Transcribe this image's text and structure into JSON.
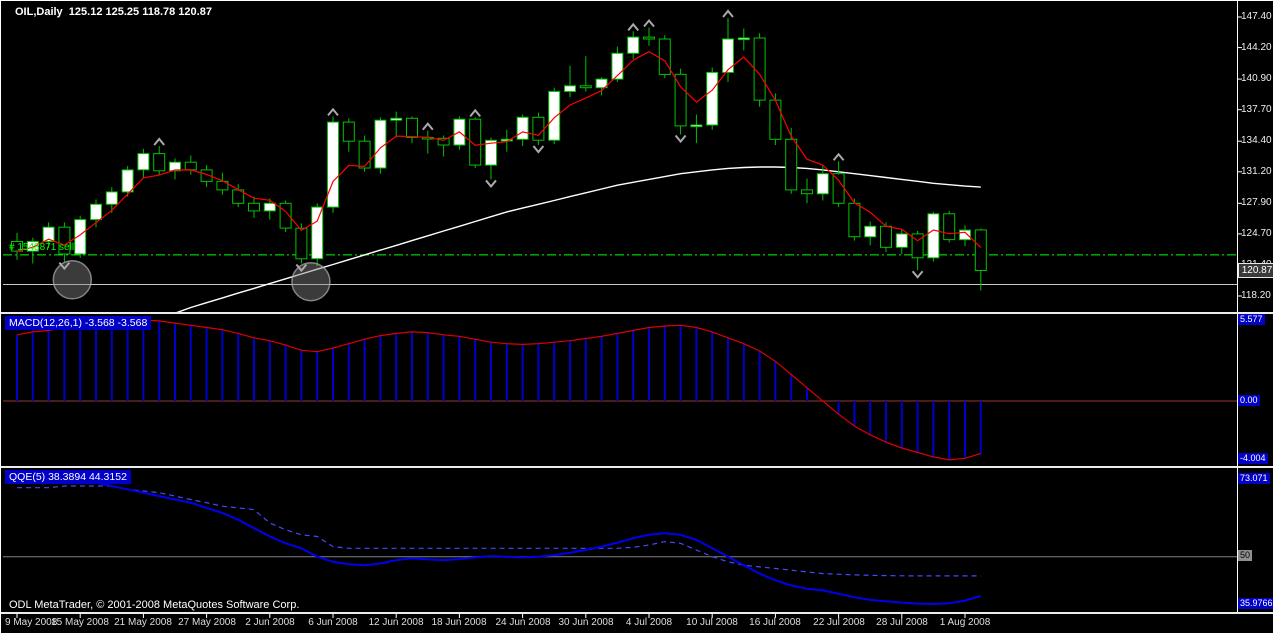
{
  "window": {
    "title": "OIL,Daily  125.12 125.25 118.78 120.87",
    "copyright": "ODL MetaTrader, © 2001-2008 MetaQuotes Software Corp."
  },
  "colors": {
    "background": "#000000",
    "frame": "#FFFFFF",
    "candle_outline": "#00C400",
    "bull_body": "#FFFFFF",
    "bear_body": "#000000",
    "ma_fast": "#FF0000",
    "ma_slow": "#FFFFFF",
    "order_line": "#00FF00",
    "support_line": "#C8C8C8",
    "macd_bar": "#0000CC",
    "macd_signal": "#DD0000",
    "macd_zero": "#993333",
    "qqe_fast": "#0000F0",
    "qqe_slow": "#4747FF",
    "level_50": "#808080",
    "indicator_label_bg": "#0000C8",
    "axis_text": "#F0F0F0",
    "arrow": "#AAAAAA"
  },
  "price_badge": "120.87",
  "chart_data": [
    {
      "type": "candlestick",
      "title": "OIL,Daily",
      "ohlc_last": [
        125.12,
        125.25,
        118.78,
        120.87
      ],
      "current_price": 120.87,
      "ylim": [
        116.5,
        148.9
      ],
      "y_ticks": [
        "147.40",
        "144.20",
        "140.90",
        "137.70",
        "134.40",
        "131.20",
        "127.90",
        "124.70",
        "121.40",
        "118.20"
      ],
      "x_ticks": [
        {
          "bar": 0,
          "label": "9 May 2008"
        },
        {
          "bar": 4,
          "label": "15 May 2008"
        },
        {
          "bar": 8,
          "label": "21 May 2008"
        },
        {
          "bar": 12,
          "label": "27 May 2008"
        },
        {
          "bar": 16,
          "label": "2 Jun 2008"
        },
        {
          "bar": 20,
          "label": "6 Jun 2008"
        },
        {
          "bar": 24,
          "label": "12 Jun 2008"
        },
        {
          "bar": 28,
          "label": "18 Jun 2008"
        },
        {
          "bar": 32,
          "label": "24 Jun 2008"
        },
        {
          "bar": 36,
          "label": "30 Jun 2008"
        },
        {
          "bar": 40,
          "label": "4 Jul 2008"
        },
        {
          "bar": 44,
          "label": "10 Jul 2008"
        },
        {
          "bar": 48,
          "label": "16 Jul 2008"
        },
        {
          "bar": 52,
          "label": "22 Jul 2008"
        },
        {
          "bar": 56,
          "label": "28 Jul 2008"
        },
        {
          "bar": 60,
          "label": "1 Aug 2008"
        }
      ],
      "candles": [
        [
          123.9,
          124.8,
          122.0,
          122.9
        ],
        [
          122.9,
          124.3,
          121.6,
          123.9
        ],
        [
          123.9,
          125.9,
          123.2,
          125.4
        ],
        [
          125.4,
          125.9,
          121.8,
          122.6
        ],
        [
          122.6,
          126.6,
          122.2,
          126.2
        ],
        [
          126.2,
          128.3,
          125.4,
          127.8
        ],
        [
          127.8,
          129.6,
          126.9,
          129.1
        ],
        [
          129.1,
          131.8,
          128.6,
          131.4
        ],
        [
          131.4,
          133.6,
          130.5,
          133.1
        ],
        [
          133.1,
          133.9,
          130.9,
          131.3
        ],
        [
          131.3,
          132.6,
          130.4,
          132.2
        ],
        [
          132.2,
          132.9,
          130.9,
          131.4
        ],
        [
          131.4,
          131.9,
          129.6,
          130.2
        ],
        [
          130.2,
          131.1,
          128.8,
          129.3
        ],
        [
          129.3,
          129.9,
          127.5,
          127.9
        ],
        [
          127.9,
          128.6,
          126.4,
          127.1
        ],
        [
          127.1,
          128.4,
          126.2,
          127.9
        ],
        [
          127.9,
          128.2,
          124.9,
          125.3
        ],
        [
          125.3,
          125.8,
          121.6,
          122.1
        ],
        [
          122.1,
          127.9,
          121.3,
          127.5
        ],
        [
          127.5,
          137.0,
          126.9,
          136.4
        ],
        [
          136.4,
          136.8,
          133.3,
          134.4
        ],
        [
          134.4,
          135.0,
          131.2,
          131.6
        ],
        [
          131.6,
          136.9,
          131.0,
          136.6
        ],
        [
          136.6,
          137.5,
          134.8,
          136.8
        ],
        [
          136.8,
          137.0,
          134.2,
          134.8
        ],
        [
          134.8,
          135.5,
          133.1,
          134.7
        ],
        [
          134.7,
          135.0,
          132.8,
          134.0
        ],
        [
          134.0,
          137.0,
          133.5,
          136.7
        ],
        [
          136.7,
          136.9,
          131.6,
          131.9
        ],
        [
          131.9,
          134.8,
          130.4,
          134.5
        ],
        [
          134.5,
          135.6,
          133.3,
          134.6
        ],
        [
          134.6,
          137.2,
          133.9,
          136.9
        ],
        [
          136.9,
          137.4,
          134.0,
          134.5
        ],
        [
          134.5,
          140.0,
          134.1,
          139.6
        ],
        [
          139.6,
          142.3,
          139.0,
          140.2
        ],
        [
          140.2,
          143.3,
          139.6,
          140.0
        ],
        [
          140.0,
          141.1,
          139.2,
          140.9
        ],
        [
          140.9,
          144.3,
          140.6,
          143.6
        ],
        [
          143.6,
          145.9,
          143.0,
          145.3
        ],
        [
          145.3,
          146.3,
          144.4,
          145.1
        ],
        [
          145.1,
          145.5,
          141.0,
          141.4
        ],
        [
          141.4,
          142.0,
          135.1,
          136.0
        ],
        [
          136.0,
          137.2,
          134.2,
          136.1
        ],
        [
          136.1,
          142.1,
          135.6,
          141.6
        ],
        [
          141.6,
          147.3,
          140.6,
          145.1
        ],
        [
          145.1,
          146.2,
          143.9,
          145.2
        ],
        [
          145.2,
          145.7,
          138.0,
          138.7
        ],
        [
          138.7,
          139.4,
          134.0,
          134.6
        ],
        [
          134.6,
          135.8,
          128.9,
          129.3
        ],
        [
          129.3,
          130.5,
          127.9,
          128.9
        ],
        [
          128.9,
          131.8,
          128.2,
          131.0
        ],
        [
          131.0,
          132.3,
          127.5,
          127.9
        ],
        [
          127.9,
          128.4,
          124.0,
          124.4
        ],
        [
          124.4,
          126.0,
          123.5,
          125.5
        ],
        [
          125.5,
          125.9,
          122.8,
          123.3
        ],
        [
          123.3,
          125.2,
          122.6,
          124.7
        ],
        [
          124.7,
          125.0,
          120.9,
          122.2
        ],
        [
          122.2,
          127.0,
          121.8,
          126.8
        ],
        [
          126.8,
          127.1,
          123.8,
          124.1
        ],
        [
          124.1,
          125.6,
          123.4,
          125.1
        ],
        [
          125.12,
          125.25,
          118.78,
          120.87
        ]
      ],
      "ma_red_period": 4,
      "ma_white": [
        111.0,
        111.5,
        112.0,
        112.5,
        113.0,
        113.5,
        114.0,
        114.6,
        115.2,
        115.8,
        116.4,
        117.0,
        117.5,
        118.0,
        118.5,
        119.0,
        119.5,
        120.0,
        120.5,
        121.0,
        121.5,
        122.0,
        122.5,
        123.0,
        123.5,
        124.0,
        124.5,
        125.0,
        125.5,
        126.0,
        126.5,
        127.0,
        127.4,
        127.8,
        128.2,
        128.6,
        129.0,
        129.4,
        129.8,
        130.1,
        130.4,
        130.7,
        131.0,
        131.2,
        131.4,
        131.55,
        131.65,
        131.7,
        131.7,
        131.65,
        131.55,
        131.4,
        131.2,
        131.0,
        130.8,
        130.6,
        130.4,
        130.2,
        130.0,
        129.85,
        129.7,
        129.6
      ],
      "fractal_up_bars": [
        9,
        20,
        26,
        29,
        39,
        40,
        45,
        52
      ],
      "fractal_down_bars": [
        3,
        18,
        30,
        33,
        42,
        57
      ],
      "signal_circles": [
        {
          "bar": 3.5,
          "price": 119.9
        },
        {
          "bar": 18.6,
          "price": 119.7
        }
      ],
      "order_line": {
        "price": 122.5,
        "label": "# 1548871 sell"
      },
      "support_line_price": 119.4
    },
    {
      "type": "bar",
      "name": "MACD",
      "label": "MACD(12,26,1) -3.568 -3.568",
      "last_values": [
        -3.568,
        -3.568
      ],
      "axis": {
        "max": "5.577",
        "zero": "0.00",
        "min": "-4.004"
      },
      "ylim": [
        -4.42,
        5.92
      ],
      "values": [
        4.5,
        4.7,
        4.8,
        5.0,
        5.2,
        5.35,
        5.45,
        5.577,
        5.5,
        5.45,
        5.3,
        5.15,
        5.0,
        4.85,
        4.6,
        4.3,
        4.1,
        3.8,
        3.45,
        3.35,
        3.6,
        3.9,
        4.2,
        4.45,
        4.6,
        4.7,
        4.65,
        4.5,
        4.4,
        4.2,
        4.0,
        3.9,
        3.85,
        3.9,
        4.0,
        4.1,
        4.25,
        4.4,
        4.6,
        4.8,
        5.0,
        5.1,
        5.15,
        5.0,
        4.7,
        4.3,
        3.9,
        3.4,
        2.7,
        1.8,
        0.9,
        0.0,
        -0.9,
        -1.7,
        -2.3,
        -2.8,
        -3.2,
        -3.5,
        -3.8,
        -4.004,
        -3.9,
        -3.568
      ]
    },
    {
      "type": "line",
      "name": "QQE",
      "label": "QQE(5) 38.3894 44.3152",
      "last_values": [
        38.3894,
        44.3152
      ],
      "axis": {
        "max": "73.071",
        "level": "50",
        "min": "35.9766"
      },
      "level": 50,
      "ylim": [
        33.6,
        76.3
      ],
      "series": [
        {
          "name": "qqe-fast",
          "style": "solid",
          "values": [
            72.0,
            72.5,
            73.071,
            72.8,
            72.5,
            72.0,
            71.0,
            70.0,
            69.0,
            68.0,
            67.0,
            66.0,
            64.5,
            63.0,
            61.0,
            58.5,
            56.0,
            54.0,
            52.5,
            50.0,
            48.5,
            47.8,
            47.5,
            48.0,
            49.0,
            49.5,
            49.2,
            49.0,
            49.3,
            49.8,
            50.2,
            50.0,
            49.8,
            50.0,
            50.5,
            51.2,
            52.0,
            53.0,
            54.2,
            55.5,
            56.5,
            57.0,
            56.5,
            55.0,
            52.5,
            50.0,
            47.5,
            45.0,
            43.0,
            41.5,
            40.5,
            40.0,
            39.0,
            38.0,
            37.2,
            36.8,
            36.4,
            36.1,
            35.9766,
            36.2,
            37.0,
            38.3894
          ]
        },
        {
          "name": "qqe-slow",
          "style": "dashed",
          "values": [
            70.5,
            70.5,
            70.5,
            71.0,
            71.0,
            71.0,
            71.0,
            70.0,
            69.5,
            69.0,
            68.0,
            67.0,
            66.0,
            65.0,
            64.5,
            64.0,
            60.0,
            58.0,
            56.5,
            56.0,
            53.0,
            52.5,
            52.5,
            52.5,
            52.5,
            52.5,
            52.5,
            52.5,
            52.5,
            52.5,
            52.5,
            52.5,
            52.5,
            52.5,
            52.5,
            52.5,
            52.5,
            52.5,
            52.5,
            52.8,
            53.5,
            54.5,
            54.0,
            52.0,
            50.0,
            48.5,
            47.5,
            47.0,
            46.5,
            46.0,
            45.5,
            45.0,
            44.8,
            44.6,
            44.5,
            44.4,
            44.35,
            44.32,
            44.3152,
            44.3152,
            44.3152,
            44.3152
          ]
        }
      ]
    }
  ]
}
